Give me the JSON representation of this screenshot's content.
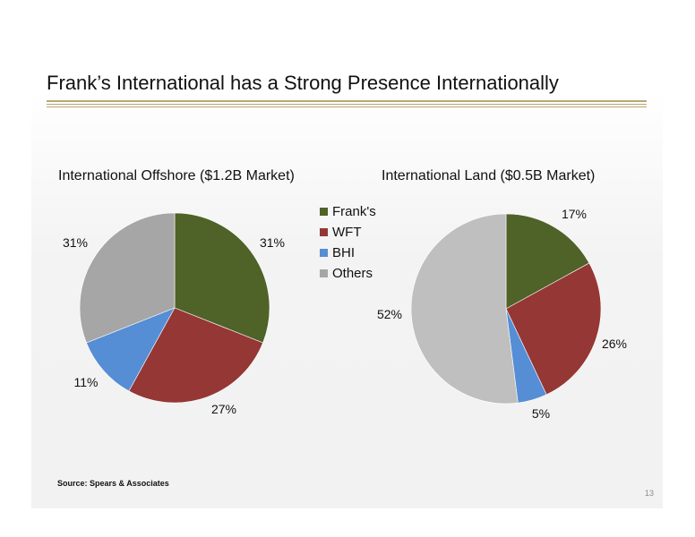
{
  "slide": {
    "title": "Frank’s International has a Strong Presence Internationally",
    "source": "Source: Spears & Associates",
    "page_number": "13",
    "rule_color": "#b8a774"
  },
  "legend": {
    "placement": "between charts, top",
    "entries": [
      {
        "label": "Frank's",
        "color": "#4f6228"
      },
      {
        "label": "WFT",
        "color": "#953735"
      },
      {
        "label": "BHI",
        "color": "#558ed5"
      },
      {
        "label": "Others",
        "color": "#a6a6a6"
      }
    ]
  },
  "chart_data": [
    {
      "type": "pie",
      "title": "International Offshore ($1.2B Market)",
      "categories": [
        "Frank's",
        "WFT",
        "BHI",
        "Others"
      ],
      "values": [
        31,
        27,
        11,
        31
      ],
      "labels": [
        "31%",
        "27%",
        "11%",
        "31%"
      ],
      "colors": [
        "#4f6228",
        "#953735",
        "#558ed5",
        "#a6a6a6"
      ]
    },
    {
      "type": "pie",
      "title": "International Land ($0.5B Market)",
      "categories": [
        "Frank's",
        "WFT",
        "BHI",
        "Others"
      ],
      "values": [
        17,
        26,
        5,
        52
      ],
      "labels": [
        "17%",
        "26%",
        "5%",
        "52%"
      ],
      "colors": [
        "#4f6228",
        "#953735",
        "#558ed5",
        "#bfbfbf"
      ]
    }
  ]
}
